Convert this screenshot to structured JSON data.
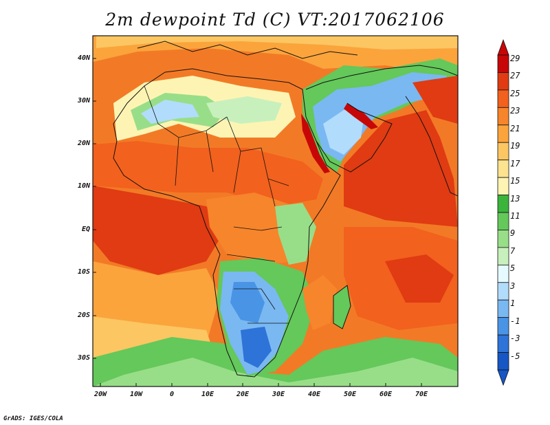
{
  "title": "2m dewpoint Td (C) VT:2017062106",
  "credit": "GrADS: IGES/COLA",
  "map": {
    "region": "Africa and Indian Ocean",
    "lat_labels": [
      "40N",
      "30N",
      "20N",
      "10N",
      "EQ",
      "10S",
      "20S",
      "30S"
    ],
    "lon_labels": [
      "20W",
      "10W",
      "0",
      "10E",
      "20E",
      "30E",
      "40E",
      "50E",
      "60E",
      "70E"
    ],
    "background_color": "#f27a26"
  },
  "colorbar": {
    "labels": [
      "29",
      "27",
      "25",
      "23",
      "21",
      "19",
      "17",
      "15",
      "13",
      "11",
      "9",
      "7",
      "5",
      "3",
      "1",
      "-1",
      "-3",
      "-5"
    ],
    "colors": [
      "#c70707",
      "#e03b12",
      "#f2611d",
      "#f7852b",
      "#fba43c",
      "#fcc662",
      "#fde28f",
      "#fdf4b3",
      "#3bb43c",
      "#64c85a",
      "#98de88",
      "#c8f0bd",
      "#e6fbff",
      "#b2dcfb",
      "#7ab8f2",
      "#4a94e6",
      "#2d73d8",
      "#1657c5"
    ]
  }
}
